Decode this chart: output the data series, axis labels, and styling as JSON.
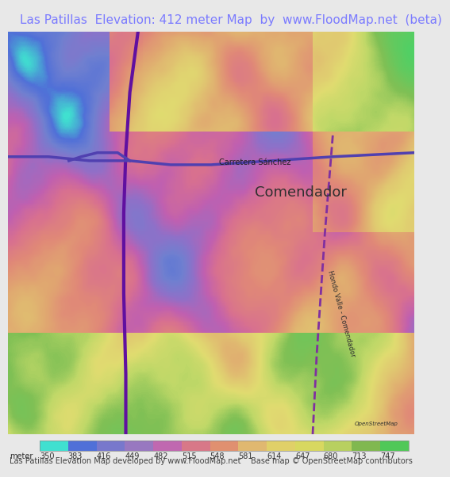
{
  "title": "Las Patillas  Elevation: 412 meter Map  by  www.FloodMap.net  (beta)",
  "title_color": "#7b7bff",
  "title_bg": "#e8e8e8",
  "title_fontsize": 11,
  "map_bg": "#e8c8d8",
  "colorbar_labels": [
    "meter",
    "350",
    "383",
    "416",
    "449",
    "482",
    "515",
    "548",
    "581",
    "614",
    "647",
    "680",
    "713",
    "747"
  ],
  "colorbar_colors": [
    "#40e0d0",
    "#6080e0",
    "#8080d0",
    "#a070c0",
    "#d060a0",
    "#e07080",
    "#e09060",
    "#e0b070",
    "#e0d070",
    "#e0e080",
    "#c0d870",
    "#90c860",
    "#60b850",
    "#50d870"
  ],
  "footer_left": "Las Patillas Elevation Map developed by www.FloodMap.net",
  "footer_right": "Base map © OpenStreetMap contributors",
  "footer_fontsize": 7,
  "label_fontsize": 8,
  "road_label": "Carretera Sánchez",
  "city_label": "Comendador",
  "road_label2": "Hondo Valle - Comendador"
}
